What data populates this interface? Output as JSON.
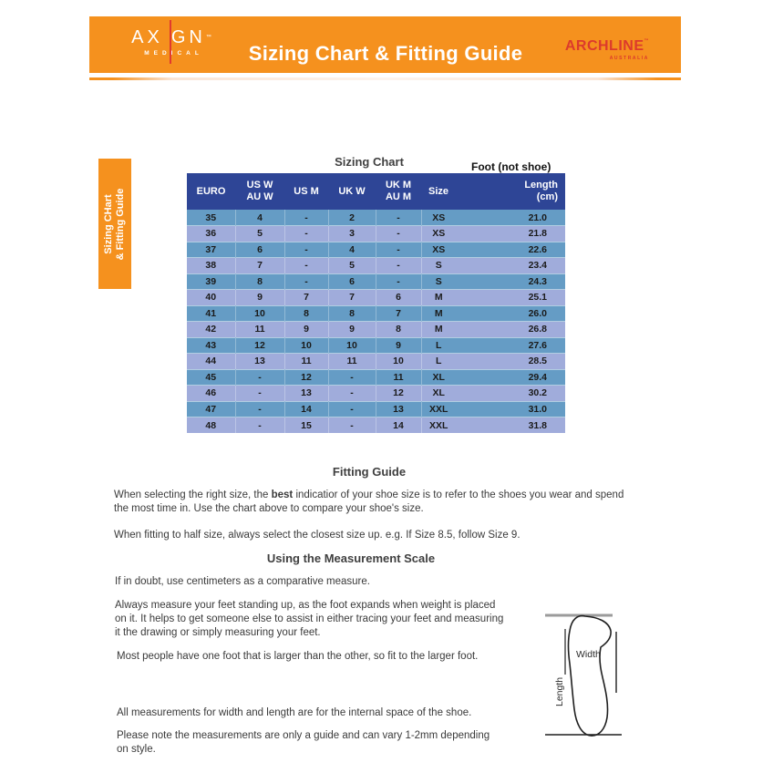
{
  "colors": {
    "banner_orange": "#F5911E",
    "logo_red": "#E23A2E",
    "archline_red": "#DC3A2C",
    "table_header_navy": "#2E4596",
    "row_steel_blue": "#659CC5",
    "row_periwinkle": "#A0ACDB",
    "heading_gray": "#3F3F3F",
    "body_text": "#3A3A3A"
  },
  "banner": {
    "logo_left": {
      "name_part1": "AX",
      "name_part2": "GN",
      "tm": "™",
      "sub": "MEDICAL"
    },
    "title": "Sizing Chart & Fitting Guide",
    "logo_right": {
      "name": "ARCHLINE",
      "tm": "™",
      "sub": "AUSTRALIA"
    }
  },
  "side_tab": {
    "text": "Sizing CHart\n& Fitting Guide"
  },
  "sizing_chart": {
    "title": "Sizing Chart",
    "foot_label": "Foot (not shoe)",
    "headers": [
      [
        "EURO"
      ],
      [
        "US W",
        "AU W"
      ],
      [
        "US M"
      ],
      [
        "UK W"
      ],
      [
        "UK M",
        "AU M"
      ],
      [
        "Size"
      ],
      [
        "Length",
        "(cm)"
      ]
    ],
    "rows": [
      [
        "35",
        "4",
        "-",
        "2",
        "-",
        "XS",
        "21.0"
      ],
      [
        "36",
        "5",
        "-",
        "3",
        "-",
        "XS",
        "21.8"
      ],
      [
        "37",
        "6",
        "-",
        "4",
        "-",
        "XS",
        "22.6"
      ],
      [
        "38",
        "7",
        "-",
        "5",
        "-",
        "S",
        "23.4"
      ],
      [
        "39",
        "8",
        "-",
        "6",
        "-",
        "S",
        "24.3"
      ],
      [
        "40",
        "9",
        "7",
        "7",
        "6",
        "M",
        "25.1"
      ],
      [
        "41",
        "10",
        "8",
        "8",
        "7",
        "M",
        "26.0"
      ],
      [
        "42",
        "11",
        "9",
        "9",
        "8",
        "M",
        "26.8"
      ],
      [
        "43",
        "12",
        "10",
        "10",
        "9",
        "L",
        "27.6"
      ],
      [
        "44",
        "13",
        "11",
        "11",
        "10",
        "L",
        "28.5"
      ],
      [
        "45",
        "-",
        "12",
        "-",
        "11",
        "XL",
        "29.4"
      ],
      [
        "46",
        "-",
        "13",
        "-",
        "12",
        "XL",
        "30.2"
      ],
      [
        "47",
        "-",
        "14",
        "-",
        "13",
        "XXL",
        "31.0"
      ],
      [
        "48",
        "-",
        "15",
        "-",
        "14",
        "XXL",
        "31.8"
      ]
    ]
  },
  "fitting_guide": {
    "title": "Fitting Guide",
    "p1_before": "When selecting the right size, the ",
    "p1_bold": "best",
    "p1_after": " indicatior of your shoe size is to refer to the shoes you wear and spend\nthe most time in. Use the chart above to compare your shoe's size.",
    "p2": "When fitting to half size, always select the closest size up. e.g. If Size 8.5, follow Size 9."
  },
  "measurement_scale": {
    "title": "Using the Measurement Scale",
    "p1": "If in doubt, use centimeters as a comparative measure.",
    "p2": "Always measure your feet standing up, as the foot expands when weight is placed\non it. It helps to get someone else to assist in either tracing your feet and measuring\nit the drawing or simply measuring your feet.",
    "p3": "Most people have one foot that is larger than the other, so fit to the larger foot.",
    "p4": "All measurements for width and length are for the internal space of the shoe.",
    "p5": "Please note the measurements are only a guide and can vary 1-2mm depending\non style."
  },
  "diagram": {
    "width_label": "Width",
    "length_label": "Length"
  }
}
